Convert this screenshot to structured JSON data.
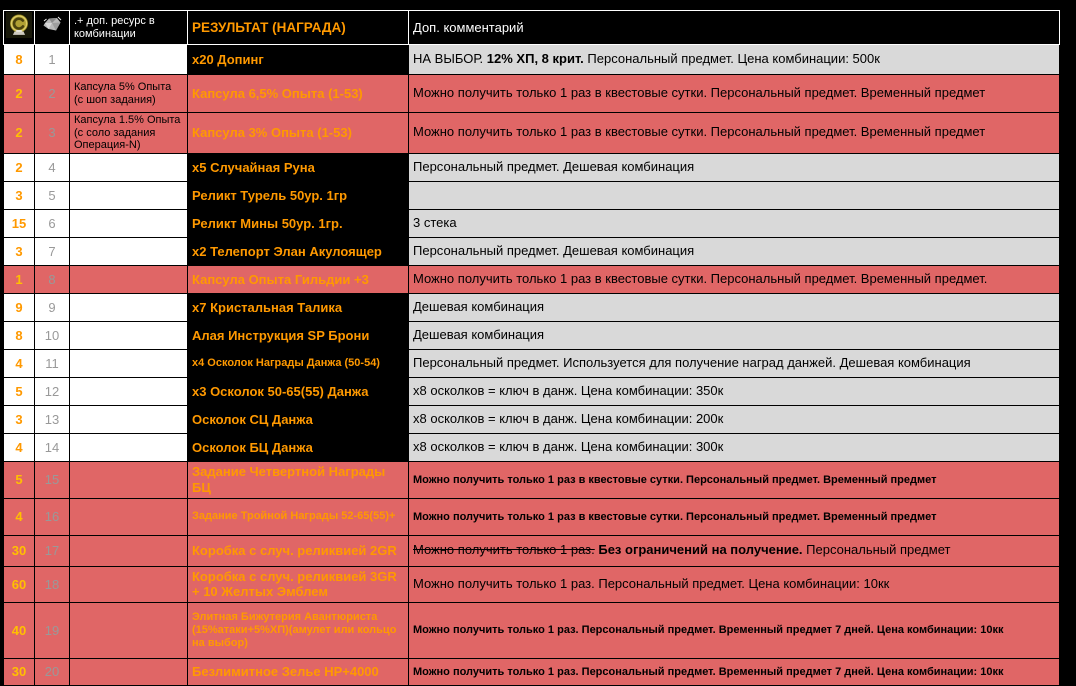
{
  "colors": {
    "page_bg": "#000000",
    "highlight_row_bg": "#e06666",
    "result_text": "#ff9900",
    "qty_text": "#ff9900",
    "qty_text_on_highlight": "#ffc000",
    "row_number_text": "#999999",
    "comment_bg": "#d9d9d9",
    "plain_cell_bg": "#ffffff",
    "result_col_bg": "#000000",
    "header_bg": "#000000",
    "header_text": "#ffffff"
  },
  "table": {
    "headers": {
      "coin_icon": "guild-coin-icon",
      "gem_icon": "diamond-icon",
      "resource": ".+ доп. ресурс в комбинации",
      "result": "РЕЗУЛЬТАТ (НАГРАДА)",
      "comment": "Доп. комментарий"
    },
    "rows": [
      {
        "qty": "8",
        "num": "1",
        "resource": "",
        "highlight": false,
        "result": "х20 Допинг",
        "result_small": false,
        "comment_small": false,
        "comment": [
          {
            "t": "НА ВЫБОР. "
          },
          {
            "t": "12% ХП, 8 крит.",
            "b": true
          },
          {
            "t": " Персональный предмет. Цена комбинации: 500к"
          }
        ]
      },
      {
        "qty": "2",
        "num": "2",
        "resource": "Капсула 5% Опыта (с шоп задания)",
        "highlight": true,
        "result": "Капсула 6,5% Опыта (1-53)",
        "result_small": false,
        "comment_small": false,
        "comment": [
          {
            "t": "Можно получить только 1 раз в квестовые сутки. Персональный предмет. Временный предмет"
          }
        ]
      },
      {
        "qty": "2",
        "num": "3",
        "resource": "Капсула 1.5% Опыта (с соло задания Операция-N)",
        "highlight": true,
        "result": "Капсула 3% Опыта (1-53)",
        "result_small": false,
        "comment_small": false,
        "comment": [
          {
            "t": "Можно получить только 1 раз в квестовые сутки. Персональный предмет. Временный предмет"
          }
        ]
      },
      {
        "qty": "2",
        "num": "4",
        "resource": "",
        "highlight": false,
        "result": "х5 Случайная Руна",
        "result_small": false,
        "comment_small": false,
        "comment": [
          {
            "t": "Персональный предмет. Дешевая комбинация"
          }
        ]
      },
      {
        "qty": "3",
        "num": "5",
        "resource": "",
        "highlight": false,
        "result": "Реликт Турель 50ур. 1гр",
        "result_small": false,
        "comment_small": false,
        "comment": []
      },
      {
        "qty": "15",
        "num": "6",
        "resource": "",
        "highlight": false,
        "result": "Реликт Мины 50ур. 1гр.",
        "result_small": false,
        "comment_small": false,
        "comment": [
          {
            "t": "3 стека"
          }
        ]
      },
      {
        "qty": "3",
        "num": "7",
        "resource": "",
        "highlight": false,
        "result": "х2 Телепорт Элан Акулоящер",
        "result_small": false,
        "comment_small": false,
        "comment": [
          {
            "t": "Персональный предмет. Дешевая комбинация"
          }
        ]
      },
      {
        "qty": "1",
        "num": "8",
        "resource": "",
        "highlight": true,
        "result": "Капсула Опыта Гильдии +3",
        "result_small": false,
        "comment_small": false,
        "comment": [
          {
            "t": "Можно получить только 1 раз в квестовые сутки. Персональный предмет. Временный предмет."
          }
        ]
      },
      {
        "qty": "9",
        "num": "9",
        "resource": "",
        "highlight": false,
        "result": "х7 Кристальная Талика",
        "result_small": false,
        "comment_small": false,
        "comment": [
          {
            "t": "Дешевая комбинация"
          }
        ]
      },
      {
        "qty": "8",
        "num": "10",
        "resource": "",
        "highlight": false,
        "result": "Алая Инструкция SP Брони",
        "result_small": false,
        "comment_small": false,
        "comment": [
          {
            "t": "Дешевая комбинация"
          }
        ]
      },
      {
        "qty": "4",
        "num": "11",
        "resource": "",
        "highlight": false,
        "result": "х4 Осколок Награды Данжа (50-54)",
        "result_small": true,
        "comment_small": false,
        "comment": [
          {
            "t": "Персональный предмет. Используется для получение наград данжей. Дешевая комбинация"
          }
        ]
      },
      {
        "qty": "5",
        "num": "12",
        "resource": "",
        "highlight": false,
        "result": "х3 Осколок 50-65(55) Данжа",
        "result_small": false,
        "comment_small": false,
        "comment": [
          {
            "t": "х8 осколков = ключ в данж. Цена комбинации: 350к"
          }
        ]
      },
      {
        "qty": "3",
        "num": "13",
        "resource": "",
        "highlight": false,
        "result": "Осколок СЦ Данжа",
        "result_small": false,
        "comment_small": false,
        "comment": [
          {
            "t": "х8 осколков = ключ в данж. Цена комбинации: 200к"
          }
        ]
      },
      {
        "qty": "4",
        "num": "14",
        "resource": "",
        "highlight": false,
        "result": "Осколок БЦ Данжа",
        "result_small": false,
        "comment_small": false,
        "comment": [
          {
            "t": "х8 осколков = ключ в данж. Цена комбинации: 300к"
          }
        ]
      },
      {
        "qty": "5",
        "num": "15",
        "resource": "",
        "highlight": true,
        "result": "Задание Четвертной Награды БЦ",
        "result_small": false,
        "comment_small": true,
        "comment": [
          {
            "t": "Можно получить только 1 раз в квестовые сутки. Персональный предмет. Временный предмет"
          }
        ]
      },
      {
        "qty": "4",
        "num": "16",
        "resource": "",
        "highlight": true,
        "result": "Задание Тройной Награды 52-65(55)+",
        "result_small": true,
        "comment_small": true,
        "comment": [
          {
            "t": "Можно получить только 1 раз в квестовые сутки. Персональный предмет. Временный предмет"
          }
        ]
      },
      {
        "qty": "30",
        "num": "17",
        "resource": "",
        "highlight": true,
        "result": "Коробка с случ. реликвией 2GR",
        "result_small": false,
        "comment_small": false,
        "comment": [
          {
            "t": "Можно получить только 1 раз.",
            "s": true
          },
          {
            "t": " "
          },
          {
            "t": "Без ограничений на получение.",
            "b": true
          },
          {
            "t": " Персональный предмет"
          }
        ]
      },
      {
        "qty": "60",
        "num": "18",
        "resource": "",
        "highlight": true,
        "result": "Коробка с случ. реликвией 3GR + 10 Желтых Эмблем",
        "result_small": false,
        "comment_small": false,
        "comment": [
          {
            "t": "Можно получить только 1 раз. Персональный предмет. Цена комбинации: 10кк"
          }
        ]
      },
      {
        "qty": "40",
        "num": "19",
        "resource": "",
        "highlight": true,
        "result": "Элитная Бижутерия Авантюриста (15%атаки+5%ХП)(амулет или кольцо на выбор)",
        "result_small": true,
        "comment_small": true,
        "comment": [
          {
            "t": "Можно получить только 1 раз. Персональный предмет. Временный предмет 7 дней. Цена комбинации: 10кк"
          }
        ]
      },
      {
        "qty": "30",
        "num": "20",
        "resource": "",
        "highlight": true,
        "result": "Безлимитное Зелье HP+4000",
        "result_small": false,
        "comment_small": true,
        "comment": [
          {
            "t": "Можно получить только 1 раз. Персональный предмет. Временный предмет 7 дней. Цена комбинации: 10кк"
          }
        ]
      }
    ]
  }
}
